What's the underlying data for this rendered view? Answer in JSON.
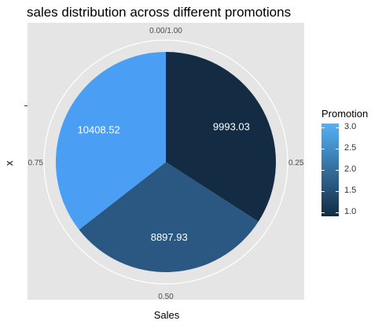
{
  "chart_data": {
    "type": "pie",
    "title": "sales distribution across different promotions",
    "xlabel": "Sales",
    "ylabel": "x",
    "slices": [
      {
        "label": "9993.03",
        "value": 9993.03,
        "promotion": 1,
        "color": "#132b43"
      },
      {
        "label": "8897.93",
        "value": 8897.93,
        "promotion": 2,
        "color": "#2b5882"
      },
      {
        "label": "10408.52",
        "value": 10408.52,
        "promotion": 3,
        "color": "#4a9ff4"
      }
    ],
    "angle_ticks": [
      {
        "label": "0.00/1.00",
        "pos": 0
      },
      {
        "label": "0.25",
        "pos": 0.25
      },
      {
        "label": "0.50",
        "pos": 0.5
      },
      {
        "label": "0.75",
        "pos": 0.75
      }
    ],
    "legend": {
      "title": "Promotion",
      "placement": "right",
      "ticks": [
        "1.0",
        "1.5",
        "2.0",
        "2.5",
        "3.0"
      ],
      "tick_values": [
        1.0,
        1.5,
        2.0,
        2.5,
        3.0
      ],
      "range": [
        1,
        3
      ],
      "color_low": "#132b43",
      "color_high": "#56b1f7"
    },
    "panel_background": "#e5e5e5",
    "grid": true
  }
}
